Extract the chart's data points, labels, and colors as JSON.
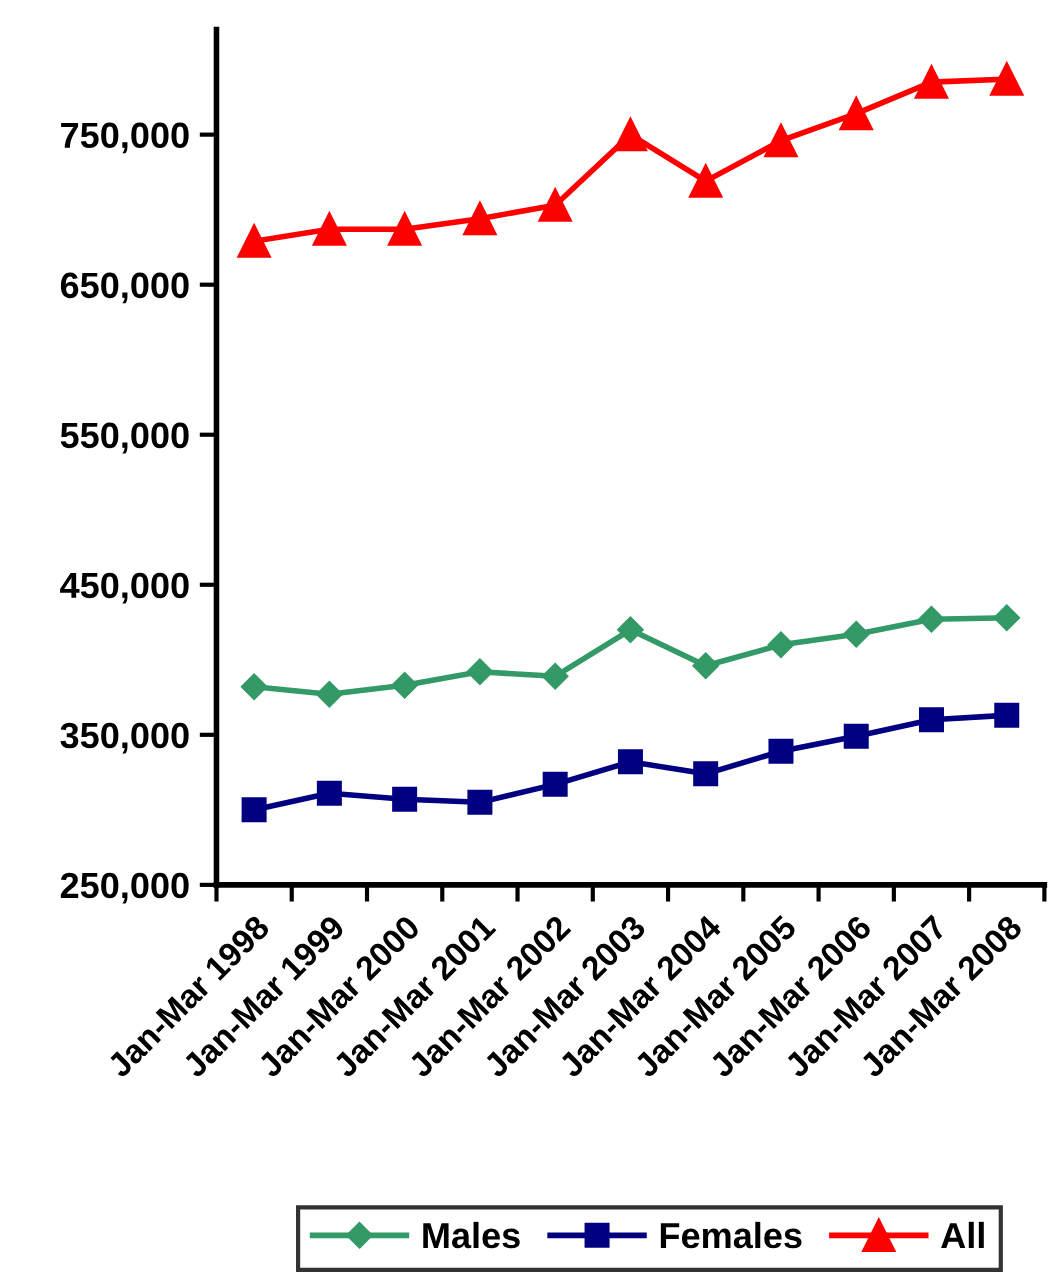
{
  "chart_data": {
    "type": "line",
    "categories": [
      "Jan-Mar 1998",
      "Jan-Mar 1999",
      "Jan-Mar 2000",
      "Jan-Mar 2001",
      "Jan-Mar 2002",
      "Jan-Mar 2003",
      "Jan-Mar 2004",
      "Jan-Mar 2005",
      "Jan-Mar 2006",
      "Jan-Mar 2007",
      "Jan-Mar 2008"
    ],
    "series": [
      {
        "name": "Males",
        "color": "#339966",
        "marker": "diamond",
        "values": [
          382000,
          377000,
          383000,
          392000,
          389000,
          420000,
          396000,
          410000,
          417000,
          427000,
          428000
        ]
      },
      {
        "name": "Females",
        "color": "#000080",
        "marker": "square",
        "values": [
          300000,
          311000,
          307000,
          305000,
          317000,
          332000,
          324000,
          339000,
          349000,
          360000,
          363000
        ]
      },
      {
        "name": "All",
        "color": "#ff0000",
        "marker": "triangle",
        "values": [
          679000,
          687000,
          687000,
          694000,
          703000,
          750000,
          719000,
          746000,
          764000,
          785000,
          787000
        ]
      }
    ],
    "ylim": [
      250000,
      820000
    ],
    "yticks": [
      {
        "value": 250000,
        "label": "250,000"
      },
      {
        "value": 350000,
        "label": "350,000"
      },
      {
        "value": 450000,
        "label": "450,000"
      },
      {
        "value": 550000,
        "label": "550,000"
      },
      {
        "value": 650000,
        "label": "650,000"
      },
      {
        "value": 750000,
        "label": "750,000"
      }
    ],
    "grid": false,
    "legend": "bottom",
    "line_style": "solid"
  }
}
